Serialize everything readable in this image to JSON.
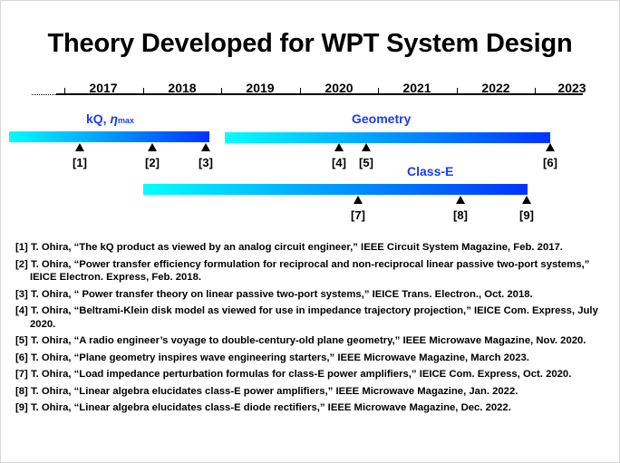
{
  "title": "Theory Developed for WPT System Design",
  "timeline": {
    "years": [
      "2017",
      "2018",
      "2019",
      "2020",
      "2021",
      "2022",
      "2023"
    ],
    "tracks": [
      {
        "label": "kQ, ",
        "label_symbol": "η",
        "label_subscript": "max",
        "start": 2016.3,
        "end": 2018.85,
        "references": [
          "[1]",
          "[2]",
          "[3]"
        ]
      },
      {
        "label": "Geometry",
        "start": 2019.05,
        "end": 2023.2,
        "references": [
          "[4]",
          "[5]",
          "[6]"
        ]
      },
      {
        "label": "Class-E",
        "start": 2018.0,
        "end": 2022.9,
        "references": [
          "[7]",
          "[8]",
          "[9]"
        ]
      }
    ],
    "markers": [
      {
        "tag": "[1]",
        "date": 2017.2,
        "track": 0
      },
      {
        "tag": "[2]",
        "date": 2018.12,
        "track": 0
      },
      {
        "tag": "[3]",
        "date": 2018.8,
        "track": 0
      },
      {
        "tag": "[4]",
        "date": 2020.5,
        "track": 1
      },
      {
        "tag": "[5]",
        "date": 2020.85,
        "track": 1
      },
      {
        "tag": "[6]",
        "date": 2023.2,
        "track": 1
      },
      {
        "tag": "[7]",
        "date": 2020.75,
        "track": 2
      },
      {
        "tag": "[8]",
        "date": 2022.05,
        "track": 2
      },
      {
        "tag": "[9]",
        "date": 2022.9,
        "track": 2
      }
    ]
  },
  "references": [
    "[1] T. Ohira, “The kQ product as viewed by an analog circuit engineer,” IEEE Circuit System Magazine, Feb. 2017.",
    "[2] T. Ohira, “Power transfer efficiency formulation for reciprocal and non-reciprocal linear passive two-port systems,” IEICE Electron. Express, Feb. 2018.",
    "[3] T. Ohira, “ Power transfer theory on linear passive two-port systems,” IEICE Trans. Electron., Oct. 2018.",
    "[4] T. Ohira, “Beltrami-Klein disk model as viewed for use in impedance trajectory projection,” IEICE  Com. Express, July 2020.",
    "[5] T. Ohira, “A radio engineer’s voyage to double-century-old plane geometry,” IEEE Microwave Magazine, Nov. 2020.",
    "[6] T. Ohira, “Plane geometry inspires wave engineering starters,” IEEE Microwave Magazine, March 2023.",
    "[7] T. Ohira, “Load impedance perturbation formulas for class-E power amplifiers,” IEICE Com. Express, Oct. 2020.",
    "[8] T. Ohira, “Linear algebra elucidates class-E power amplifiers,” IEEE Microwave Magazine, Jan. 2022.",
    "[9] T. Ohira, “Linear algebra elucidates class-E diode rectifiers,” IEEE Microwave Magazine, Dec. 2022."
  ]
}
